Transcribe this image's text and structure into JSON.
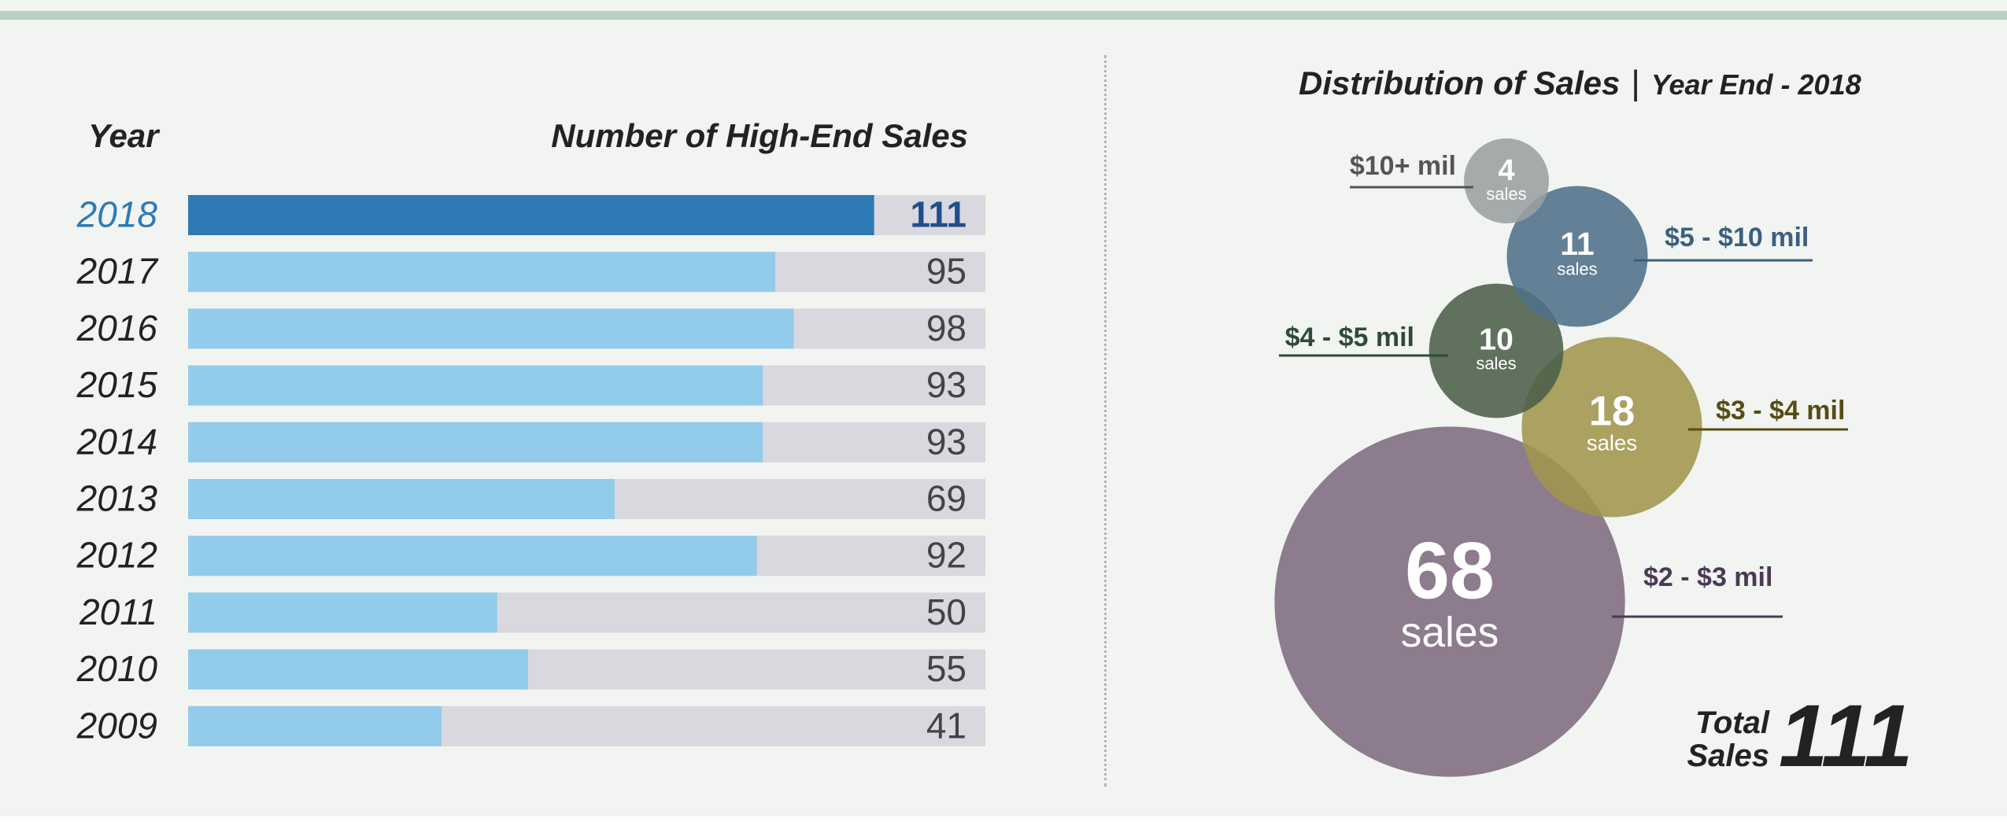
{
  "header": {
    "year_label": "Year",
    "sales_label": "Number of High-End Sales"
  },
  "chart_data": [
    {
      "type": "bar",
      "orientation": "horizontal",
      "categories": [
        "2018",
        "2017",
        "2016",
        "2015",
        "2014",
        "2013",
        "2012",
        "2011",
        "2010",
        "2009"
      ],
      "values": [
        111,
        95,
        98,
        93,
        93,
        69,
        92,
        50,
        55,
        41
      ],
      "highlight": "2018",
      "xlim": [
        0,
        129
      ],
      "colors": {
        "highlight": "#2e7ab5",
        "bar": "#93cbea",
        "track": "#d8d8de",
        "highlight_text": "#1f4e8c",
        "text": "#444444"
      }
    },
    {
      "type": "bubble",
      "title": "Distribution of Sales",
      "subtitle": "Year End - 2018",
      "unit": "sales",
      "bubbles": [
        {
          "label": "$2 - $3 mil",
          "value": 68,
          "color": "#7e6a80",
          "text_color": "#4a3a55"
        },
        {
          "label": "$3 - $4 mil",
          "value": 18,
          "color": "#a0954c",
          "text_color": "#564d14"
        },
        {
          "label": "$4 - $5 mil",
          "value": 10,
          "color": "#4b5e48",
          "text_color": "#2f4a3a"
        },
        {
          "label": "$5 - $10 mil",
          "value": 11,
          "color": "#4f7089",
          "text_color": "#3a5f80"
        },
        {
          "label": "$10+ mil",
          "value": 4,
          "color": "#9aa0a0",
          "text_color": "#555555"
        }
      ],
      "total_label": "Total Sales",
      "total_value": "111"
    }
  ]
}
